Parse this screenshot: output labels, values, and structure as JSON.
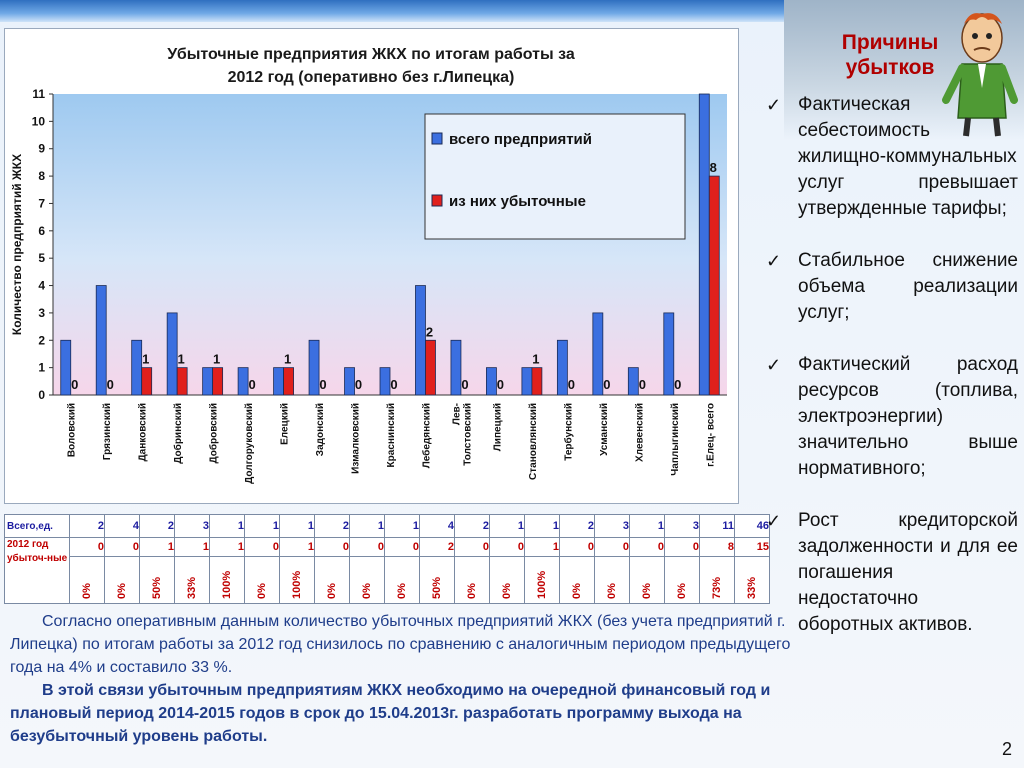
{
  "chart_data": {
    "type": "bar",
    "title": "Убыточные предприятия ЖКХ по итогам работы за 2012 год    (оперативно без г.Липецка)",
    "title_lines": [
      "Убыточные предприятия ЖКХ по итогам работы за",
      "2012 год    (оперативно без г.Липецка)"
    ],
    "ylabel": "Количество предприятий ЖКХ",
    "xlabel": "",
    "ylim": [
      0,
      11
    ],
    "yticks": [
      "0",
      "1",
      "2",
      "3",
      "4",
      "5",
      "6",
      "7",
      "8",
      "9",
      "10",
      "11"
    ],
    "grid": false,
    "legend_position": "top-right",
    "categories": [
      "Воловский",
      "Грязинский",
      "Данковский",
      "Добринский",
      "Добровский",
      "Долгоруковский",
      "Елецкий",
      "Задонский",
      "Измалковский",
      "Краснинский",
      "Лебедянский",
      "Лев-Толстовский",
      "Липецкий",
      "Становлянский",
      "Тербунский",
      "Усманский",
      "Хлевенский",
      "Чаплыгинский",
      "г.Елец- всего"
    ],
    "category_lines": [
      [
        "Воловский"
      ],
      [
        "Грязинский"
      ],
      [
        "Данковский"
      ],
      [
        "Добринский"
      ],
      [
        "Добровский"
      ],
      [
        "Долгоруковский"
      ],
      [
        "Елецкий"
      ],
      [
        "Задонский"
      ],
      [
        "Измалковский"
      ],
      [
        "Краснинский"
      ],
      [
        "Лебедянский"
      ],
      [
        "Лев-",
        "Толстовский"
      ],
      [
        "Липецкий"
      ],
      [
        "Становлянский"
      ],
      [
        "Тербунский"
      ],
      [
        "Усманский"
      ],
      [
        "Хлевенский"
      ],
      [
        "Чаплыгинский"
      ],
      [
        "г.Елец- всего"
      ]
    ],
    "series": [
      {
        "name": "всего предприятий",
        "color": "#3b6fe0",
        "values": [
          2,
          4,
          2,
          3,
          1,
          1,
          1,
          2,
          1,
          1,
          4,
          2,
          1,
          1,
          2,
          3,
          1,
          3,
          11
        ]
      },
      {
        "name": "из них убыточные",
        "color": "#e0201c",
        "values": [
          0,
          0,
          1,
          1,
          1,
          0,
          1,
          0,
          0,
          0,
          2,
          0,
          0,
          1,
          0,
          0,
          0,
          0,
          8
        ]
      }
    ],
    "data_labels": [
      "0",
      "0",
      "1",
      "1",
      "1",
      "0",
      "1",
      "0",
      "0",
      "0",
      "2",
      "0",
      "0",
      "1",
      "0",
      "0",
      "0",
      "0",
      "8"
    ]
  },
  "table": {
    "row1_label": "Всего,ед.",
    "row1_values": [
      "2",
      "4",
      "2",
      "3",
      "1",
      "1",
      "1",
      "2",
      "1",
      "1",
      "4",
      "2",
      "1",
      "1",
      "2",
      "3",
      "1",
      "3",
      "11"
    ],
    "row1_total": "46",
    "row2_values": [
      "0",
      "0",
      "1",
      "1",
      "1",
      "0",
      "1",
      "0",
      "0",
      "0",
      "2",
      "0",
      "0",
      "1",
      "0",
      "0",
      "0",
      "0",
      "8"
    ],
    "row2_total": "15",
    "row23_label": "2012 год убыточ-ные",
    "row3_values": [
      "0%",
      "0%",
      "50%",
      "33%",
      "100%",
      "0%",
      "100%",
      "0%",
      "0%",
      "0%",
      "50%",
      "0%",
      "0%",
      "100%",
      "0%",
      "0%",
      "0%",
      "0%",
      "73%"
    ],
    "row3_total": "33%"
  },
  "side": {
    "title": "Причины убытков",
    "items": [
      "Фактическая себестоимость жилищно-коммунальных услуг превышает утвержденные тарифы;",
      "Стабильное снижение объема реализации услуг;",
      "Фактический расход ресурсов (топлива, электроэнергии) значительно выше нормативного;",
      "Рост кредиторской задолженности и для ее погашения недостаточно оборотных активов."
    ],
    "check": "✓"
  },
  "bottom": {
    "p1": "Согласно оперативным данным количество убыточных предприятий ЖКХ (без учета предприятий г. Липецка) по итогам работы за 2012 год снизилось по сравнению с аналогичным периодом предыдущего года  на 4% и составило  33 %.",
    "p2": "В этой связи убыточным предприятиям ЖКХ необходимо на очередной финансовый год и  плановый период 2014-2015 годов в срок до 15.04.2013г. разработать программу выхода на безубыточный уровень  работы."
  },
  "page_number": "2",
  "colors": {
    "accent_red": "#b00000",
    "text_blue": "#1f3d8a"
  }
}
